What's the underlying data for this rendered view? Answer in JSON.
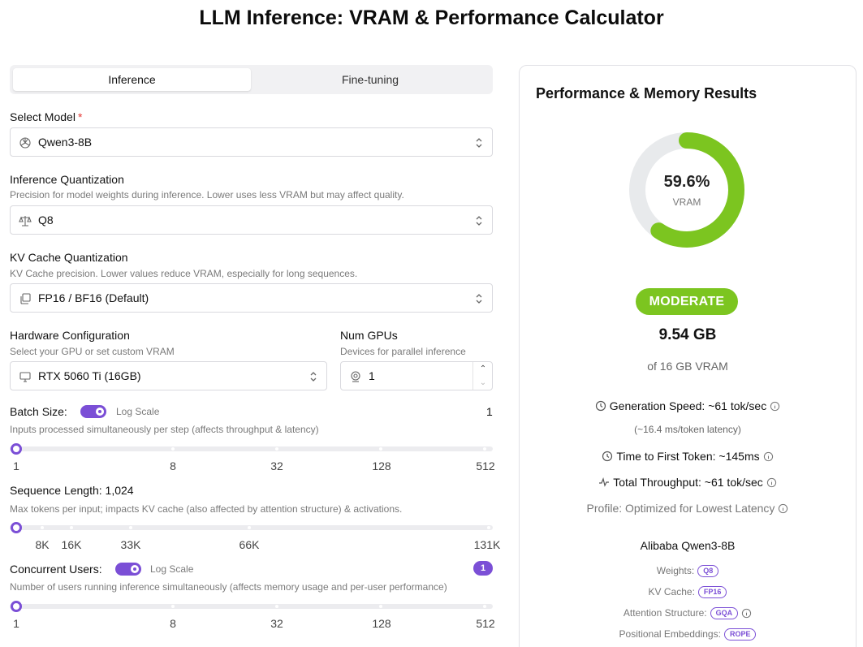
{
  "page": {
    "title": "LLM Inference: VRAM & Performance Calculator"
  },
  "tabs": [
    {
      "label": "Inference",
      "active": true
    },
    {
      "label": "Fine-tuning",
      "active": false
    }
  ],
  "model": {
    "label": "Select Model",
    "required_mark": "*",
    "value": "Qwen3-8B",
    "icon": "openai-icon"
  },
  "inference_quant": {
    "label": "Inference Quantization",
    "hint": "Precision for model weights during inference. Lower uses less VRAM but may affect quality.",
    "value": "Q8",
    "icon": "scale-icon"
  },
  "kv_quant": {
    "label": "KV Cache Quantization",
    "hint": "KV Cache precision. Lower values reduce VRAM, especially for long sequences.",
    "value": "FP16 / BF16 (Default)",
    "icon": "layers-icon"
  },
  "hardware": {
    "label": "Hardware Configuration",
    "hint": "Select your GPU or set custom VRAM",
    "value": "RTX 5060 Ti (16GB)",
    "icon": "monitor-icon"
  },
  "num_gpus": {
    "label": "Num GPUs",
    "hint": "Devices for parallel inference",
    "value": "1",
    "icon": "gpu-icon"
  },
  "batch": {
    "label": "Batch Size:",
    "toggle_label": "Log Scale",
    "log_scale": true,
    "value": "1",
    "hint": "Inputs processed simultaneously per step (affects throughput & latency)",
    "slider_fraction": 0,
    "ticks": [
      "1",
      "8",
      "32",
      "128",
      "512"
    ]
  },
  "sequence": {
    "label": "Sequence Length:",
    "value": "1,024",
    "hint": "Max tokens per input; impacts KV cache (also affected by attention structure) & activations.",
    "slider_fraction": 0,
    "ticks": [
      "8K",
      "16K",
      "33K",
      "66K",
      "131K"
    ]
  },
  "users": {
    "label": "Concurrent Users:",
    "toggle_label": "Log Scale",
    "log_scale": true,
    "value": "1",
    "hint": "Number of users running inference simultaneously (affects memory usage and per-user performance)",
    "slider_fraction": 0,
    "ticks": [
      "1",
      "8",
      "32",
      "128",
      "512"
    ]
  },
  "results": {
    "title": "Performance & Memory Results",
    "vram_percent": "59.6%",
    "vram_fraction": 0.596,
    "vram_label": "VRAM",
    "status": "MODERATE",
    "status_color": "#7cc520",
    "used": "9.54 GB",
    "of_total": "of 16 GB VRAM",
    "generation_speed": "Generation Speed: ~61 tok/sec",
    "latency": "(~16.4 ms/token latency)",
    "ttft": "Time to First Token: ~145ms",
    "throughput": "Total Throughput: ~61 tok/sec",
    "profile": "Profile: Optimized for Lowest Latency",
    "model_name": "Alibaba Qwen3-8B",
    "weights_label": "Weights:",
    "weights_badge": "Q8",
    "kv_label": "KV Cache:",
    "kv_badge": "FP16",
    "attn_label": "Attention Structure:",
    "attn_badge": "GQA",
    "pos_label": "Positional Embeddings:",
    "pos_badge": "ROPE"
  },
  "colors": {
    "accent": "#7b4fd6",
    "good": "#7cc520"
  }
}
